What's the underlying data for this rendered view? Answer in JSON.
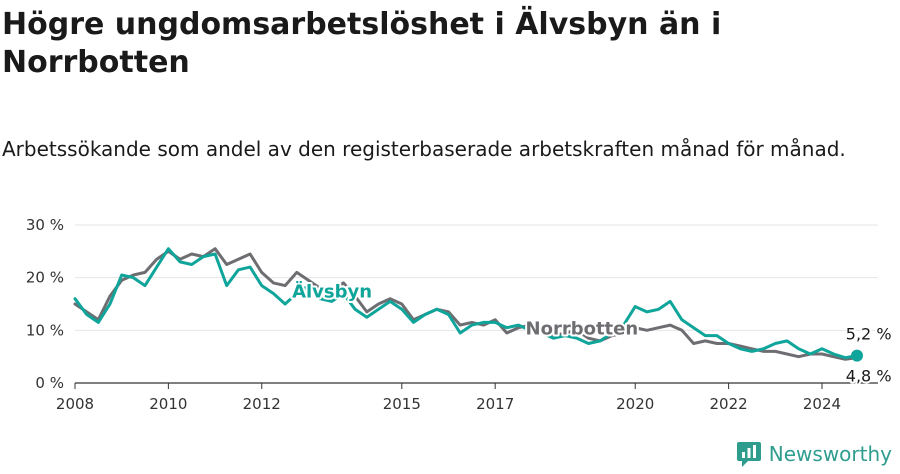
{
  "header": {
    "title": "Högre ungdomsarbetslöshet i Älvsbyn än i Norrbotten",
    "subtitle": "Arbetssökande som andel av den registerbaserade arbetskraften månad för månad."
  },
  "brand": {
    "name": "Newsworthy",
    "icon": "newsworthy-logo-icon"
  },
  "colors": {
    "alvsbyn": "#0fa59b",
    "norrbotten": "#6e6e72",
    "grid": "#e4e4e4"
  },
  "chart_data": {
    "type": "line",
    "xlabel": "",
    "ylabel": "",
    "xlim": [
      2008,
      2025.2
    ],
    "ylim": [
      0,
      30
    ],
    "grid": true,
    "x_ticks": [
      {
        "value": 2008,
        "label": "2008"
      },
      {
        "value": 2010,
        "label": "2010"
      },
      {
        "value": 2012,
        "label": "2012"
      },
      {
        "value": 2015,
        "label": "2015"
      },
      {
        "value": 2017,
        "label": "2017"
      },
      {
        "value": 2020,
        "label": "2020"
      },
      {
        "value": 2022,
        "label": "2022"
      },
      {
        "value": 2024,
        "label": "2024"
      }
    ],
    "y_ticks": [
      {
        "value": 0,
        "label": "0 %"
      },
      {
        "value": 10,
        "label": "10 %"
      },
      {
        "value": 20,
        "label": "20 %"
      },
      {
        "value": 30,
        "label": "30 %"
      }
    ],
    "series": [
      {
        "name": "Norrbotten",
        "end_label": "4,8 %",
        "x": [
          2008.0,
          2008.25,
          2008.5,
          2008.75,
          2009.0,
          2009.25,
          2009.5,
          2009.75,
          2010.0,
          2010.25,
          2010.5,
          2010.75,
          2011.0,
          2011.25,
          2011.5,
          2011.75,
          2012.0,
          2012.25,
          2012.5,
          2012.75,
          2013.0,
          2013.25,
          2013.5,
          2013.75,
          2014.0,
          2014.25,
          2014.5,
          2014.75,
          2015.0,
          2015.25,
          2015.5,
          2015.75,
          2016.0,
          2016.25,
          2016.5,
          2016.75,
          2017.0,
          2017.25,
          2017.5,
          2017.75,
          2018.0,
          2018.25,
          2018.5,
          2018.75,
          2019.0,
          2019.25,
          2019.5,
          2019.75,
          2020.0,
          2020.25,
          2020.5,
          2020.75,
          2021.0,
          2021.25,
          2021.5,
          2021.75,
          2022.0,
          2022.25,
          2022.5,
          2022.75,
          2023.0,
          2023.25,
          2023.5,
          2023.75,
          2024.0,
          2024.25,
          2024.5,
          2024.75
        ],
        "values": [
          15.0,
          13.5,
          12.0,
          16.5,
          19.5,
          20.5,
          21.0,
          23.5,
          25.0,
          23.5,
          24.5,
          24.0,
          25.5,
          22.5,
          23.5,
          24.5,
          21.0,
          19.0,
          18.5,
          21.0,
          19.5,
          18.0,
          17.5,
          19.0,
          16.5,
          13.5,
          15.0,
          16.0,
          15.0,
          12.0,
          13.0,
          14.0,
          13.5,
          11.0,
          11.5,
          11.0,
          12.0,
          9.5,
          10.5,
          11.0,
          10.5,
          9.0,
          9.5,
          10.0,
          8.5,
          8.0,
          9.0,
          9.5,
          10.5,
          10.0,
          10.5,
          11.0,
          10.0,
          7.5,
          8.0,
          7.5,
          7.5,
          7.0,
          6.5,
          6.0,
          6.0,
          5.5,
          5.0,
          5.5,
          5.5,
          5.0,
          4.5,
          4.8
        ]
      },
      {
        "name": "Älvsbyn",
        "end_label": "5,2 %",
        "x": [
          2008.0,
          2008.25,
          2008.5,
          2008.75,
          2009.0,
          2009.25,
          2009.5,
          2009.75,
          2010.0,
          2010.25,
          2010.5,
          2010.75,
          2011.0,
          2011.25,
          2011.5,
          2011.75,
          2012.0,
          2012.25,
          2012.5,
          2012.75,
          2013.0,
          2013.25,
          2013.5,
          2013.75,
          2014.0,
          2014.25,
          2014.5,
          2014.75,
          2015.0,
          2015.25,
          2015.5,
          2015.75,
          2016.0,
          2016.25,
          2016.5,
          2016.75,
          2017.0,
          2017.25,
          2017.5,
          2017.75,
          2018.0,
          2018.25,
          2018.5,
          2018.75,
          2019.0,
          2019.25,
          2019.5,
          2019.75,
          2020.0,
          2020.25,
          2020.5,
          2020.75,
          2021.0,
          2021.25,
          2021.5,
          2021.75,
          2022.0,
          2022.25,
          2022.5,
          2022.75,
          2023.0,
          2023.25,
          2023.5,
          2023.75,
          2024.0,
          2024.25,
          2024.5,
          2024.75
        ],
        "values": [
          16.0,
          13.0,
          11.5,
          15.0,
          20.5,
          20.0,
          18.5,
          22.0,
          25.5,
          23.0,
          22.5,
          24.0,
          24.5,
          18.5,
          21.5,
          22.0,
          18.5,
          17.0,
          15.0,
          17.0,
          18.5,
          16.0,
          15.5,
          17.0,
          14.0,
          12.5,
          14.0,
          15.5,
          14.0,
          11.5,
          13.0,
          14.0,
          13.0,
          9.5,
          11.0,
          11.5,
          11.5,
          10.5,
          11.0,
          10.0,
          9.5,
          8.5,
          9.0,
          8.5,
          7.5,
          8.0,
          9.5,
          11.0,
          14.5,
          13.5,
          14.0,
          15.5,
          12.0,
          10.5,
          9.0,
          9.0,
          7.5,
          6.5,
          6.0,
          6.5,
          7.5,
          8.0,
          6.5,
          5.5,
          6.5,
          5.5,
          4.8,
          5.2
        ]
      }
    ]
  }
}
